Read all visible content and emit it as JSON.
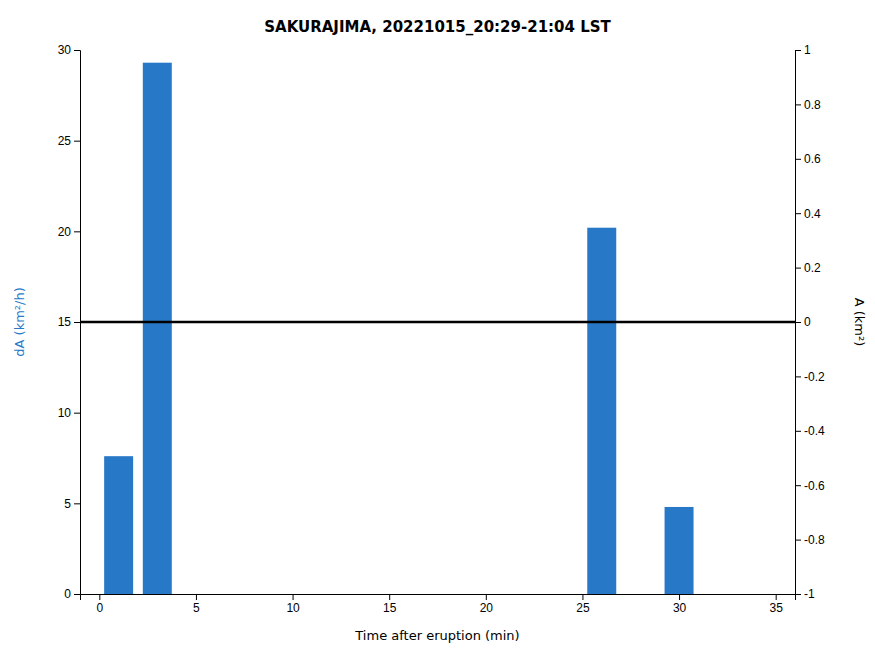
{
  "chart_data": {
    "type": "bar",
    "title": "SAKURAJIMA, 20221015_20:29-21:04 LST",
    "x": [
      1,
      3,
      26,
      30
    ],
    "values": [
      7.6,
      29.3,
      20.2,
      4.8
    ],
    "color": "#2878c8",
    "hline": 15.0,
    "xlabel": "Time after eruption (min)",
    "ylabel": "dA (km²/h)",
    "y2label": "A (km²)",
    "xlim": [
      -1,
      36
    ],
    "xticks": [
      0,
      5,
      10,
      15,
      20,
      25,
      30,
      35
    ],
    "ylim": [
      0,
      30
    ],
    "yticks": [
      0,
      5,
      10,
      15,
      20,
      25,
      30
    ],
    "y2lim": [
      -1,
      1
    ],
    "y2ticks": [
      -1,
      -0.8,
      -0.6,
      -0.4,
      -0.2,
      0,
      0.2,
      0.4,
      0.6,
      0.8,
      1
    ],
    "grid": false
  }
}
